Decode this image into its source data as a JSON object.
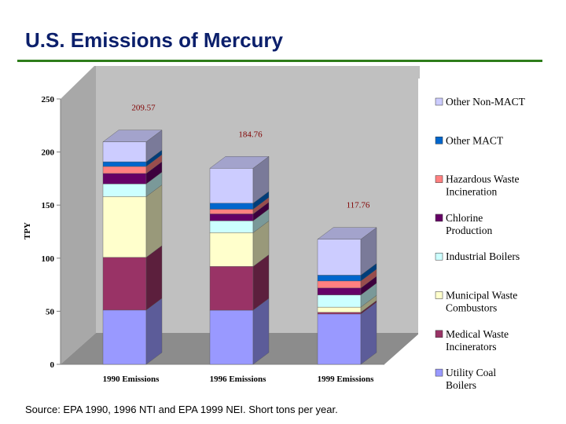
{
  "title": "U.S. Emissions of Mercury",
  "source": "Source: EPA 1990, 1996 NTI and EPA 1999 NEI. Short tons per year.",
  "chart_data": {
    "type": "bar",
    "stacked": true,
    "three_d": true,
    "ylabel": "TPY",
    "ylim": [
      0,
      250
    ],
    "yticks": [
      0,
      50,
      100,
      150,
      200,
      250
    ],
    "categories": [
      "1990 Emissions",
      "1996 Emissions",
      "1999 Emissions"
    ],
    "totals": [
      "209.57",
      "184.76",
      "117.76"
    ],
    "grid": false,
    "legend_position": "right",
    "series": [
      {
        "name": "Utility Coal Boilers",
        "color": "#9999ff",
        "values": [
          51.1,
          51.0,
          47.4
        ]
      },
      {
        "name": "Medical Waste Incinerators",
        "color": "#993366",
        "values": [
          49.7,
          41.2,
          1.6
        ]
      },
      {
        "name": "Municipal Waste Combustors",
        "color": "#ffffcc",
        "values": [
          57.2,
          31.8,
          4.9
        ]
      },
      {
        "name": "Industrial Boilers",
        "color": "#ccffff",
        "values": [
          12.0,
          11.2,
          11.5
        ]
      },
      {
        "name": "Chlorine Production",
        "color": "#660066",
        "values": [
          9.8,
          6.5,
          6.5
        ]
      },
      {
        "name": "Hazardous Waste Incineration",
        "color": "#ff8080",
        "values": [
          6.6,
          4.4,
          6.6
        ]
      },
      {
        "name": "Other MACT",
        "color": "#0066cc",
        "values": [
          4.4,
          5.7,
          5.5
        ]
      },
      {
        "name": "Other Non-MACT",
        "color": "#ccccff",
        "values": [
          18.8,
          32.9,
          33.8
        ]
      }
    ]
  }
}
